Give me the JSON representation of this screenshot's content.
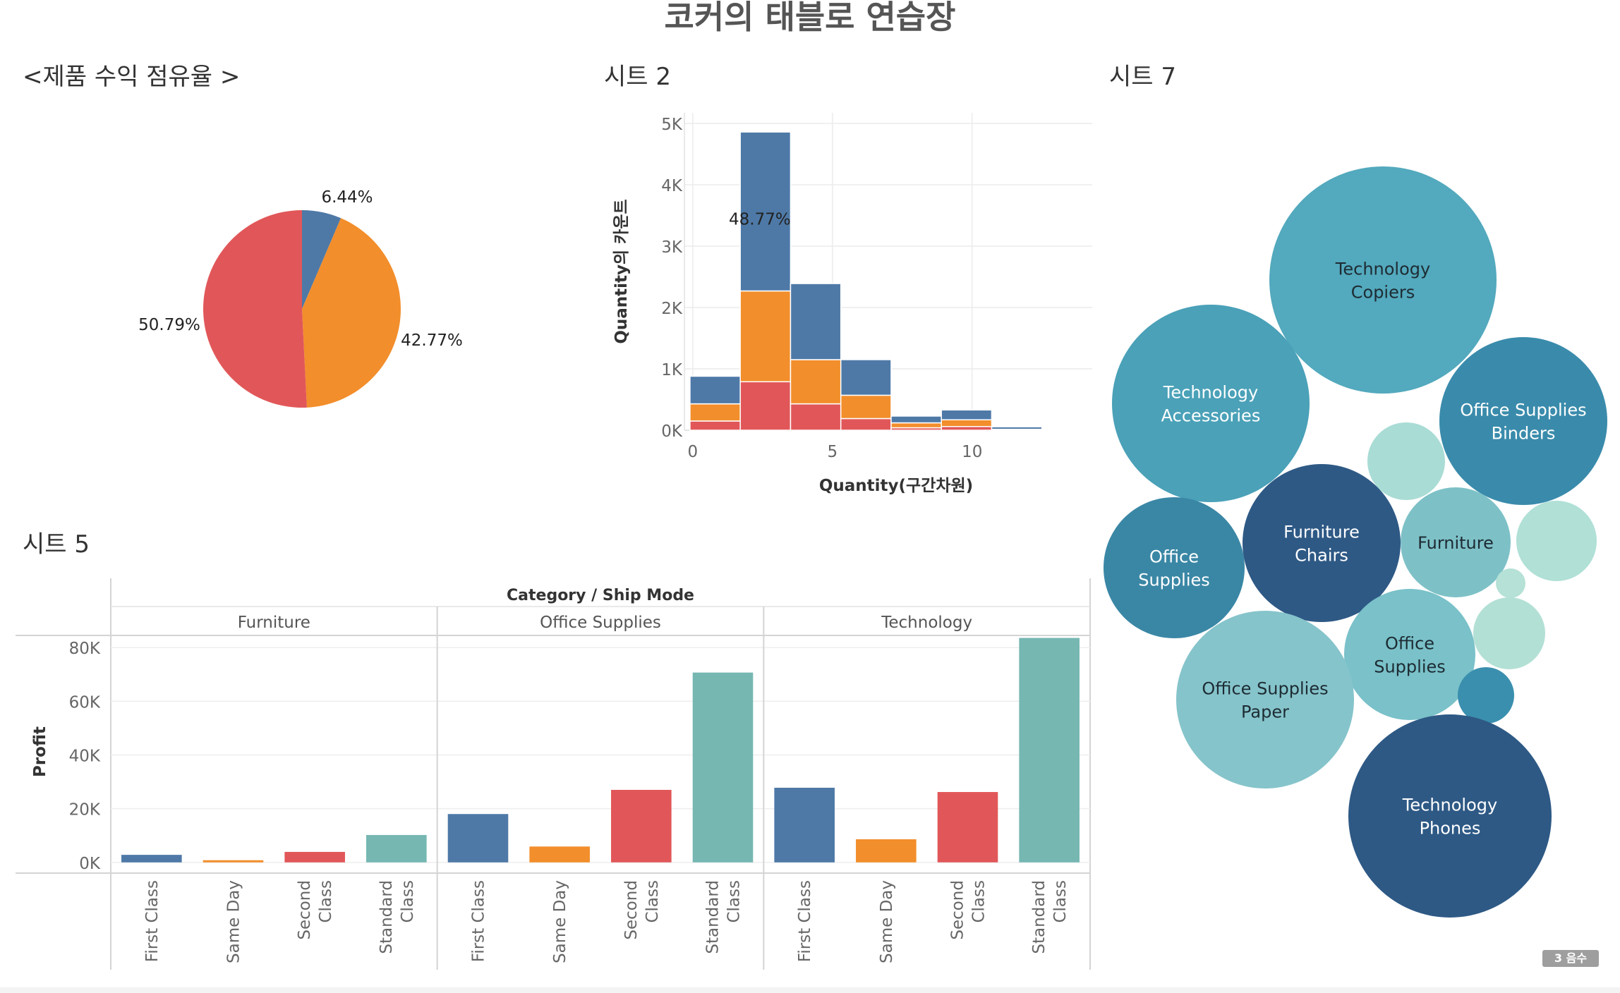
{
  "dashboard": {
    "title": "코커의 태블로 연습장",
    "badge": "3 음수"
  },
  "colors": {
    "blue": "#4e79a7",
    "orange": "#f28e2b",
    "red": "#e15759",
    "teal": "#76b7b2"
  },
  "chart_data": [
    {
      "id": "pie",
      "type": "pie",
      "title": "<제품 수익 점유율 >",
      "slices": [
        {
          "value": 6.44,
          "label": "6.44%",
          "color": "#4e79a7"
        },
        {
          "value": 42.77,
          "label": "42.77%",
          "color": "#f28e2b"
        },
        {
          "value": 50.79,
          "label": "50.79%",
          "color": "#e15759"
        }
      ]
    },
    {
      "id": "histogram",
      "type": "bar",
      "stacked": true,
      "title": "시트 2",
      "xlabel": "Quantity(구간차원)",
      "ylabel": "Quantity의 카운트",
      "xlim": [
        -0.3,
        14.3
      ],
      "ylim": [
        0,
        5000
      ],
      "x_ticks": [
        0,
        5,
        10
      ],
      "y_ticks": [
        {
          "v": 0,
          "label": "0K"
        },
        {
          "v": 1000,
          "label": "1K"
        },
        {
          "v": 2000,
          "label": "2K"
        },
        {
          "v": 3000,
          "label": "3K"
        },
        {
          "v": 4000,
          "label": "4K"
        },
        {
          "v": 5000,
          "label": "5K"
        }
      ],
      "grid": true,
      "annotation": {
        "text": "48.77%",
        "x": 2.4,
        "y": 3350
      },
      "bins": [
        {
          "x0": -0.1,
          "x1": 1.7,
          "red": 150,
          "orange": 280,
          "blue": 450
        },
        {
          "x0": 1.7,
          "x1": 3.5,
          "red": 790,
          "orange": 1480,
          "blue": 2590
        },
        {
          "x0": 3.5,
          "x1": 5.3,
          "red": 430,
          "orange": 720,
          "blue": 1240
        },
        {
          "x0": 5.3,
          "x1": 7.1,
          "red": 190,
          "orange": 380,
          "blue": 580
        },
        {
          "x0": 7.1,
          "x1": 8.9,
          "red": 40,
          "orange": 80,
          "blue": 110
        },
        {
          "x0": 8.9,
          "x1": 10.7,
          "red": 60,
          "orange": 110,
          "blue": 160
        },
        {
          "x0": 10.7,
          "x1": 12.5,
          "red": 5,
          "orange": 10,
          "blue": 40
        },
        {
          "x0": 12.5,
          "x1": 14.3,
          "red": 2,
          "orange": 5,
          "blue": 15
        }
      ]
    },
    {
      "id": "bars",
      "type": "bar",
      "title": "시트 5",
      "header": "Category / Ship Mode",
      "ylabel": "Profit",
      "ylim": [
        -4000,
        84000
      ],
      "y_ticks": [
        {
          "v": 0,
          "label": "0K"
        },
        {
          "v": 20000,
          "label": "20K"
        },
        {
          "v": 40000,
          "label": "40K"
        },
        {
          "v": 60000,
          "label": "60K"
        },
        {
          "v": 80000,
          "label": "80K"
        }
      ],
      "groups": [
        {
          "name": "Furniture",
          "bars": [
            {
              "mode": [
                "First Class"
              ],
              "value": 2800,
              "color": "#4e79a7"
            },
            {
              "mode": [
                "Same Day"
              ],
              "value": 800,
              "color": "#f28e2b"
            },
            {
              "mode": [
                "Second",
                "Class"
              ],
              "value": 3900,
              "color": "#e15759"
            },
            {
              "mode": [
                "Standard",
                "Class"
              ],
              "value": 10200,
              "color": "#76b7b2"
            }
          ]
        },
        {
          "name": "Office Supplies",
          "bars": [
            {
              "mode": [
                "First Class"
              ],
              "value": 18000,
              "color": "#4e79a7"
            },
            {
              "mode": [
                "Same Day"
              ],
              "value": 5900,
              "color": "#f28e2b"
            },
            {
              "mode": [
                "Second",
                "Class"
              ],
              "value": 27000,
              "color": "#e15759"
            },
            {
              "mode": [
                "Standard",
                "Class"
              ],
              "value": 70700,
              "color": "#76b7b2"
            }
          ]
        },
        {
          "name": "Technology",
          "bars": [
            {
              "mode": [
                "First Class"
              ],
              "value": 27800,
              "color": "#4e79a7"
            },
            {
              "mode": [
                "Same Day"
              ],
              "value": 8600,
              "color": "#f28e2b"
            },
            {
              "mode": [
                "Second",
                "Class"
              ],
              "value": 26200,
              "color": "#e15759"
            },
            {
              "mode": [
                "Standard",
                "Class"
              ],
              "value": 83600,
              "color": "#76b7b2"
            }
          ]
        }
      ]
    },
    {
      "id": "bubbles",
      "type": "scatter",
      "title": "시트 7",
      "bubbles": [
        {
          "name": "Technology Copiers",
          "lines": [
            "Technology",
            "Copiers"
          ],
          "color": "#53a9bd"
        },
        {
          "name": "Technology Accessories",
          "lines": [
            "Technology",
            "Accessories"
          ],
          "color": "#4aa1b8"
        },
        {
          "name": "Office Supplies Binders",
          "lines": [
            "Office Supplies",
            "Binders"
          ],
          "color": "#3a8bab"
        },
        {
          "name": "",
          "lines": [],
          "color": "#a9dcd5"
        },
        {
          "name": "Furniture Chairs",
          "lines": [
            "Furniture",
            "Chairs"
          ],
          "color": "#2e5985"
        },
        {
          "name": "Furniture",
          "lines": [
            "Furniture"
          ],
          "color": "#7dc1c7"
        },
        {
          "name": "",
          "lines": [],
          "color": "#b0e0d6"
        },
        {
          "name": "Office Supplies",
          "lines": [
            "Office",
            "Supplies"
          ],
          "color": "#3a87a5"
        },
        {
          "name": "",
          "lines": [],
          "color": "#b5e1d6"
        },
        {
          "name": "Office Supplies",
          "lines": [
            "Office",
            "Supplies"
          ],
          "color": "#7ac1c9"
        },
        {
          "name": "",
          "lines": [],
          "color": "#b3e0d5"
        },
        {
          "name": "Office Supplies Paper",
          "lines": [
            "Office Supplies",
            "Paper"
          ],
          "color": "#86c4cb"
        },
        {
          "name": "",
          "lines": [],
          "color": "#3a8fae"
        },
        {
          "name": "Technology Phones",
          "lines": [
            "Technology",
            "Phones"
          ],
          "color": "#2e5985"
        }
      ]
    }
  ]
}
